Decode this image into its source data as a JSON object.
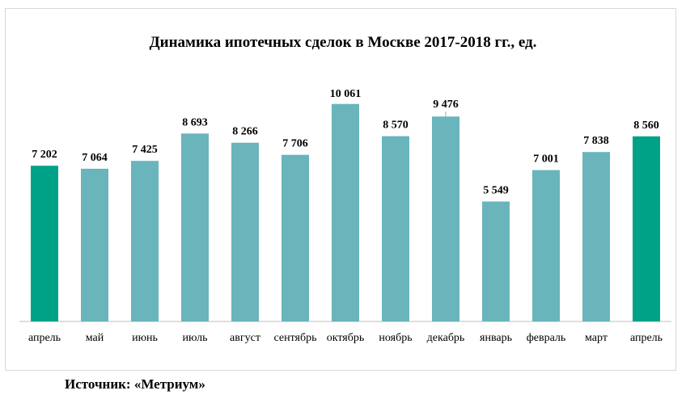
{
  "chart_data": {
    "type": "bar",
    "title": "Динамика ипотечных сделок в Москве 2017-2018 гг., ед.",
    "categories": [
      "апрель",
      "май",
      "июнь",
      "июль",
      "август",
      "сентябрь",
      "октябрь",
      "ноябрь",
      "декабрь",
      "январь",
      "февраль",
      "март",
      "апрель"
    ],
    "values": [
      7202,
      7064,
      7425,
      8693,
      8266,
      7706,
      10061,
      8570,
      9476,
      5549,
      7001,
      7838,
      8560
    ],
    "value_labels": [
      "7 202",
      "7 064",
      "7 425",
      "8 693",
      "8 266",
      "7 706",
      "10 061",
      "8 570",
      "9 476",
      "5 549",
      "7 001",
      "7 838",
      "8 560"
    ],
    "highlighted_indices": [
      0,
      12
    ],
    "ylim": [
      0,
      11000
    ],
    "grid": false,
    "legend": "none",
    "colors": {
      "bar": "#69b5bb",
      "highlight": "#00a287",
      "axis": "#bfbfbf",
      "text": "#000000"
    }
  },
  "source": "Источник: «Метриум»"
}
